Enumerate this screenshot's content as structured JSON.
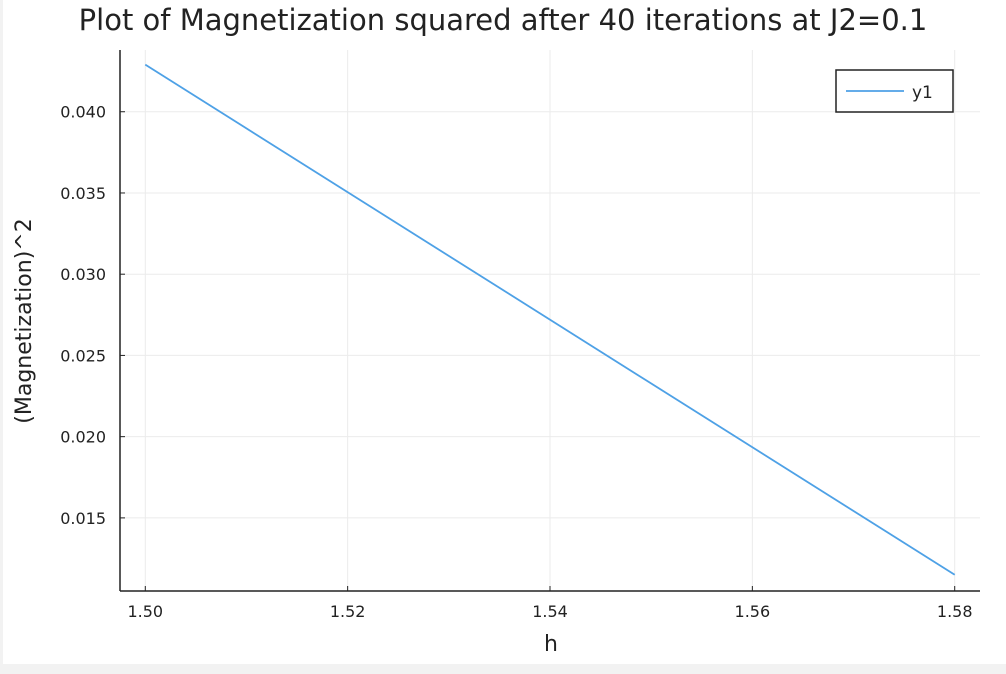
{
  "chart_data": {
    "type": "line",
    "title": "Plot of Magnetization squared after 40 iterations at J2=0.1",
    "xlabel": "h",
    "ylabel": "(Magnetization)^2",
    "x": [
      1.5,
      1.58
    ],
    "series": [
      {
        "name": "y1",
        "values": [
          0.0429,
          0.0115
        ],
        "color": "#4ea1e6"
      }
    ],
    "xlim": [
      1.4975,
      1.5825
    ],
    "ylim": [
      0.0105,
      0.0438
    ],
    "xticks": [
      1.5,
      1.52,
      1.54,
      1.56,
      1.58
    ],
    "xtick_labels": [
      "1.50",
      "1.52",
      "1.54",
      "1.56",
      "1.58"
    ],
    "yticks": [
      0.015,
      0.02,
      0.025,
      0.03,
      0.035,
      0.04
    ],
    "ytick_labels": [
      "0.015",
      "0.020",
      "0.025",
      "0.030",
      "0.035",
      "0.040"
    ],
    "grid": true,
    "legend_position": "top-right",
    "colors": {
      "axis": "#222222",
      "grid": "#ebebeb",
      "text": "#222222"
    }
  }
}
